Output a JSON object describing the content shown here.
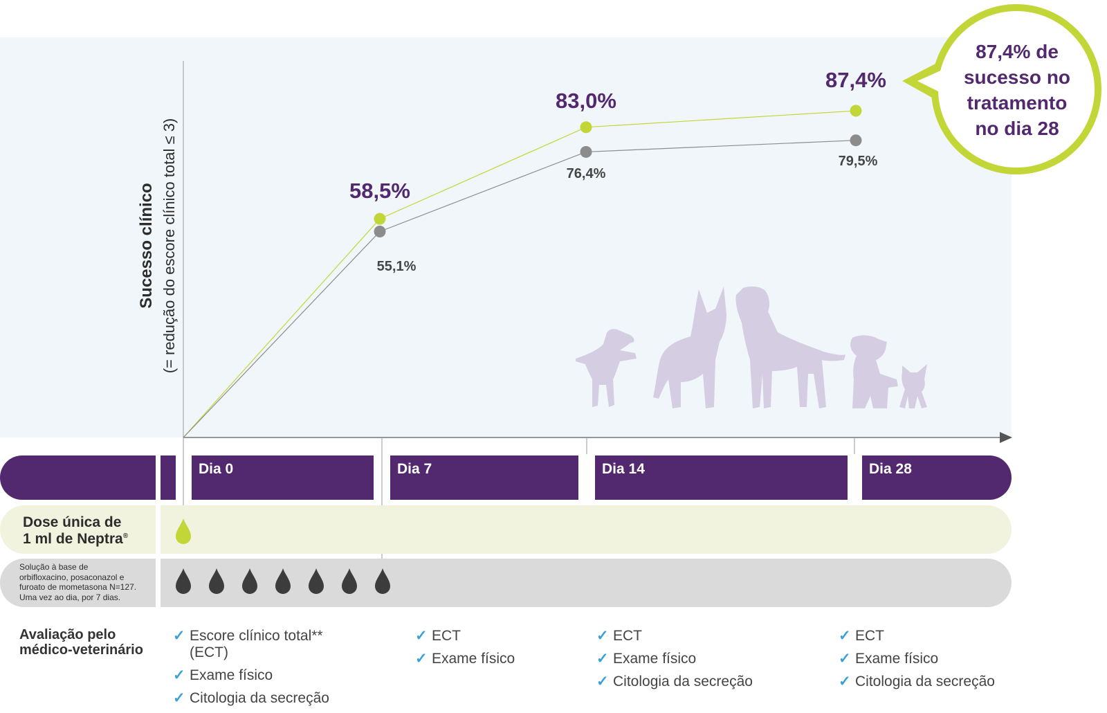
{
  "chart_data": {
    "type": "line",
    "x": [
      "Dia 0",
      "Dia 7",
      "Dia 14",
      "Dia 28"
    ],
    "ylabel": "Sucesso clínico",
    "ylabel_sub": "(= redução do escore clínico total ≤ 3)",
    "series": [
      {
        "values": [
          0,
          58.5,
          83.0,
          87.4
        ],
        "labels": [
          "",
          "58,5%",
          "83,0%",
          "87,4%"
        ],
        "color": "#c3d637"
      },
      {
        "values": [
          0,
          55.1,
          76.4,
          79.5
        ],
        "labels": [
          "",
          "55,1%",
          "76,4%",
          "79,5%"
        ],
        "color": "#8c8c8c"
      }
    ],
    "callout": [
      "87,4% de",
      "sucesso no",
      "tratamento",
      "no dia 28"
    ],
    "grid": false
  },
  "timeline": {
    "days": [
      "Dia 0",
      "Dia 7",
      "Dia 14",
      "Dia 28"
    ]
  },
  "dose_row": {
    "label_line1": "Dose única de",
    "label_line2": "1 ml de Neptra",
    "label_sup": "®",
    "drop_count": 1,
    "color": "#c3d637"
  },
  "comparator_row": {
    "lines": [
      "Solução à base de",
      "orbifloxacino, posaconazol e",
      "furoato de mometasona N=127.",
      "Uma vez ao dia, por 7 dias."
    ],
    "drop_count": 7,
    "color": "#3c3c3c"
  },
  "evaluation": {
    "title_line1": "Avaliação pelo",
    "title_line2": "médico-veterinário",
    "columns": [
      {
        "items": [
          {
            "text": "Escore clínico total**",
            "sub": "(ECT)"
          },
          {
            "text": "Exame físico"
          },
          {
            "text": "Citologia da secreção"
          }
        ]
      },
      {
        "items": [
          {
            "text": "ECT"
          },
          {
            "text": "Exame físico"
          }
        ]
      },
      {
        "items": [
          {
            "text": "ECT"
          },
          {
            "text": "Exame físico"
          },
          {
            "text": "Citologia da secreção"
          }
        ]
      },
      {
        "items": [
          {
            "text": "ECT"
          },
          {
            "text": "Exame físico"
          },
          {
            "text": "Citologia da secreção"
          }
        ]
      }
    ],
    "check_symbol": "✓"
  },
  "colors": {
    "accent": "#52286e",
    "lime": "#c3d637",
    "check": "#3aa0d8"
  },
  "illustration": "dog-silhouettes-icon"
}
